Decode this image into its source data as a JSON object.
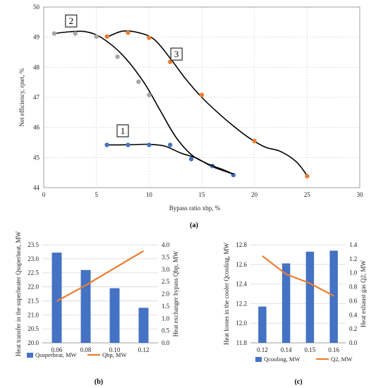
{
  "chart_data": [
    {
      "id": "a",
      "type": "scatter",
      "caption": "(a)",
      "xlabel": "Bypass ratio xbp, %",
      "ylabel": "Net efficiency, ηnet, %",
      "xlim": [
        0,
        30
      ],
      "ylim": [
        44,
        50
      ],
      "xticks": [
        0,
        5,
        10,
        15,
        20,
        25,
        30
      ],
      "yticks": [
        44,
        45,
        46,
        47,
        48,
        49,
        50
      ],
      "grid": true,
      "series": [
        {
          "name": "1",
          "color": "#4472c4",
          "points": [
            [
              6,
              45.42
            ],
            [
              8,
              45.42
            ],
            [
              10,
              45.42
            ],
            [
              12,
              45.42
            ],
            [
              14,
              44.95
            ],
            [
              16,
              44.72
            ],
            [
              18,
              44.42
            ]
          ],
          "curve": [
            [
              5.8,
              45.42
            ],
            [
              7,
              45.42
            ],
            [
              8.5,
              45.43
            ],
            [
              10,
              45.44
            ],
            [
              11.5,
              45.38
            ],
            [
              13,
              45.15
            ],
            [
              14.5,
              44.98
            ],
            [
              16,
              44.7
            ],
            [
              18,
              44.45
            ]
          ]
        },
        {
          "name": "2",
          "color": "#a5a5a5",
          "points": [
            [
              1,
              49.12
            ],
            [
              3,
              49.12
            ],
            [
              5,
              49.02
            ],
            [
              7,
              48.35
            ],
            [
              9,
              47.52
            ],
            [
              10,
              47.08
            ]
          ],
          "curve": [
            [
              1,
              49.12
            ],
            [
              2.5,
              49.18
            ],
            [
              4,
              49.18
            ],
            [
              5.5,
              48.98
            ],
            [
              7.5,
              48.4
            ],
            [
              9.5,
              47.5
            ],
            [
              11,
              46.6
            ],
            [
              12.5,
              45.7
            ],
            [
              14,
              45.1
            ],
            [
              15.5,
              44.8
            ],
            [
              17,
              44.6
            ],
            [
              18,
              44.45
            ]
          ]
        },
        {
          "name": "3",
          "color": "#ed7d31",
          "points": [
            [
              6,
              49.02
            ],
            [
              8,
              49.15
            ],
            [
              10,
              48.98
            ],
            [
              12,
              48.18
            ],
            [
              15,
              47.08
            ],
            [
              20,
              45.55
            ],
            [
              25,
              44.38
            ]
          ],
          "curve": [
            [
              6,
              49.0
            ],
            [
              7.5,
              49.2
            ],
            [
              9,
              49.15
            ],
            [
              10.5,
              48.92
            ],
            [
              12,
              48.3
            ],
            [
              13.5,
              47.6
            ],
            [
              15,
              47.0
            ],
            [
              16.5,
              46.5
            ],
            [
              18,
              46.05
            ],
            [
              19.5,
              45.65
            ],
            [
              21,
              45.35
            ],
            [
              22.5,
              45.2
            ],
            [
              24,
              44.85
            ],
            [
              25,
              44.4
            ]
          ]
        }
      ]
    },
    {
      "id": "b",
      "type": "bar-line",
      "caption": "(b)",
      "categories": [
        "0.06",
        "0.08",
        "0.10",
        "0.12"
      ],
      "ylabel_left": "Heat transfer in the superheater Qsuperheat, MW",
      "ylabel_right": "Heat exchanger bypass Qbp, MW",
      "ylim_left": [
        20.0,
        23.5
      ],
      "ylim_right": [
        0.0,
        4.0
      ],
      "yticks_left": [
        "20.0",
        "20.5",
        "21.0",
        "21.5",
        "22.0",
        "22.5",
        "23.0",
        "23.5"
      ],
      "yticks_right": [
        "0.0",
        "0.5",
        "1.0",
        "1.5",
        "2.0",
        "2.5",
        "3.0",
        "3.5",
        "4.0"
      ],
      "bars": {
        "name": "Qsuperheat, MW",
        "color": "#4472c4",
        "values": [
          23.22,
          22.6,
          21.95,
          21.25
        ]
      },
      "line": {
        "name": "Qbp, MW",
        "color": "#ed7d31",
        "values": [
          1.7,
          2.35,
          3.05,
          3.75
        ]
      }
    },
    {
      "id": "c",
      "type": "bar-line",
      "caption": "(c)",
      "categories": [
        "0.12",
        "0.14",
        "0.15",
        "0.16"
      ],
      "ylabel_left": "Heat losses in the cooler Qcooling, MW",
      "ylabel_right": "Heat exhaust gas Q2, MW",
      "ylim_left": [
        11.8,
        12.8
      ],
      "ylim_right": [
        0.0,
        1.4
      ],
      "yticks_left": [
        "11.8",
        "12.0",
        "12.2",
        "12.4",
        "12.6",
        "12.8"
      ],
      "yticks_right": [
        "0.0",
        "0.2",
        "0.4",
        "0.6",
        "0.8",
        "1.0",
        "1.2",
        "1.4"
      ],
      "bars": {
        "name": "Qcooling, MW",
        "color": "#4472c4",
        "values": [
          12.17,
          12.61,
          12.73,
          12.74
        ]
      },
      "line": {
        "name": "Q2, MW",
        "color": "#ed7d31",
        "values": [
          1.24,
          0.98,
          0.85,
          0.67
        ]
      }
    }
  ]
}
